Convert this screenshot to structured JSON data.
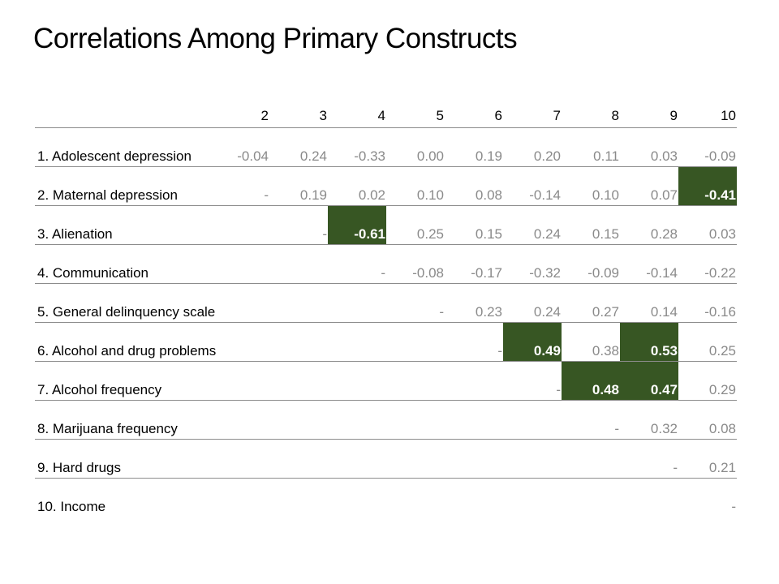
{
  "title": "Correlations Among Primary Constructs",
  "highlight_color": "#375623",
  "columns": [
    "2",
    "3",
    "4",
    "5",
    "6",
    "7",
    "8",
    "9",
    "10"
  ],
  "rows": [
    {
      "label": "1. Adolescent depression",
      "cells": [
        {
          "v": "-0.04"
        },
        {
          "v": "0.24"
        },
        {
          "v": "-0.33"
        },
        {
          "v": "0.00"
        },
        {
          "v": "0.19"
        },
        {
          "v": "0.20"
        },
        {
          "v": "0.11"
        },
        {
          "v": "0.03"
        },
        {
          "v": "-0.09"
        }
      ]
    },
    {
      "label": "2. Maternal depression",
      "cells": [
        {
          "v": "-"
        },
        {
          "v": "0.19"
        },
        {
          "v": "0.02"
        },
        {
          "v": "0.10"
        },
        {
          "v": "0.08"
        },
        {
          "v": "-0.14"
        },
        {
          "v": "0.10"
        },
        {
          "v": "0.07"
        },
        {
          "v": "-0.41",
          "hl": true
        }
      ]
    },
    {
      "label": "3. Alienation",
      "cells": [
        {
          "v": ""
        },
        {
          "v": "-"
        },
        {
          "v": "-0.61",
          "hl": true
        },
        {
          "v": "0.25"
        },
        {
          "v": "0.15"
        },
        {
          "v": "0.24"
        },
        {
          "v": "0.15"
        },
        {
          "v": "0.28"
        },
        {
          "v": "0.03"
        }
      ]
    },
    {
      "label": "4. Communication",
      "cells": [
        {
          "v": ""
        },
        {
          "v": ""
        },
        {
          "v": "-"
        },
        {
          "v": "-0.08"
        },
        {
          "v": "-0.17"
        },
        {
          "v": "-0.32"
        },
        {
          "v": "-0.09"
        },
        {
          "v": "-0.14"
        },
        {
          "v": "-0.22"
        }
      ]
    },
    {
      "label": "5. General delinquency scale",
      "cells": [
        {
          "v": ""
        },
        {
          "v": ""
        },
        {
          "v": ""
        },
        {
          "v": "-"
        },
        {
          "v": "0.23"
        },
        {
          "v": "0.24"
        },
        {
          "v": "0.27"
        },
        {
          "v": "0.14"
        },
        {
          "v": "-0.16"
        }
      ]
    },
    {
      "label": "6. Alcohol and drug problems",
      "cells": [
        {
          "v": ""
        },
        {
          "v": ""
        },
        {
          "v": ""
        },
        {
          "v": ""
        },
        {
          "v": "-"
        },
        {
          "v": "0.49",
          "hl": true
        },
        {
          "v": "0.38"
        },
        {
          "v": "0.53",
          "hl": true
        },
        {
          "v": "0.25"
        }
      ]
    },
    {
      "label": "7. Alcohol frequency",
      "cells": [
        {
          "v": ""
        },
        {
          "v": ""
        },
        {
          "v": ""
        },
        {
          "v": ""
        },
        {
          "v": ""
        },
        {
          "v": "-"
        },
        {
          "v": "0.48",
          "hl": true
        },
        {
          "v": "0.47",
          "hl": true
        },
        {
          "v": "0.29"
        }
      ]
    },
    {
      "label": "8. Marijuana frequency",
      "cells": [
        {
          "v": ""
        },
        {
          "v": ""
        },
        {
          "v": ""
        },
        {
          "v": ""
        },
        {
          "v": ""
        },
        {
          "v": ""
        },
        {
          "v": "-"
        },
        {
          "v": "0.32"
        },
        {
          "v": "0.08"
        }
      ]
    },
    {
      "label": "9. Hard drugs",
      "cells": [
        {
          "v": ""
        },
        {
          "v": ""
        },
        {
          "v": ""
        },
        {
          "v": ""
        },
        {
          "v": ""
        },
        {
          "v": ""
        },
        {
          "v": ""
        },
        {
          "v": "-"
        },
        {
          "v": "0.21"
        }
      ]
    },
    {
      "label": "10. Income",
      "cells": [
        {
          "v": ""
        },
        {
          "v": ""
        },
        {
          "v": ""
        },
        {
          "v": ""
        },
        {
          "v": ""
        },
        {
          "v": ""
        },
        {
          "v": ""
        },
        {
          "v": ""
        },
        {
          "v": "-"
        }
      ]
    }
  ]
}
